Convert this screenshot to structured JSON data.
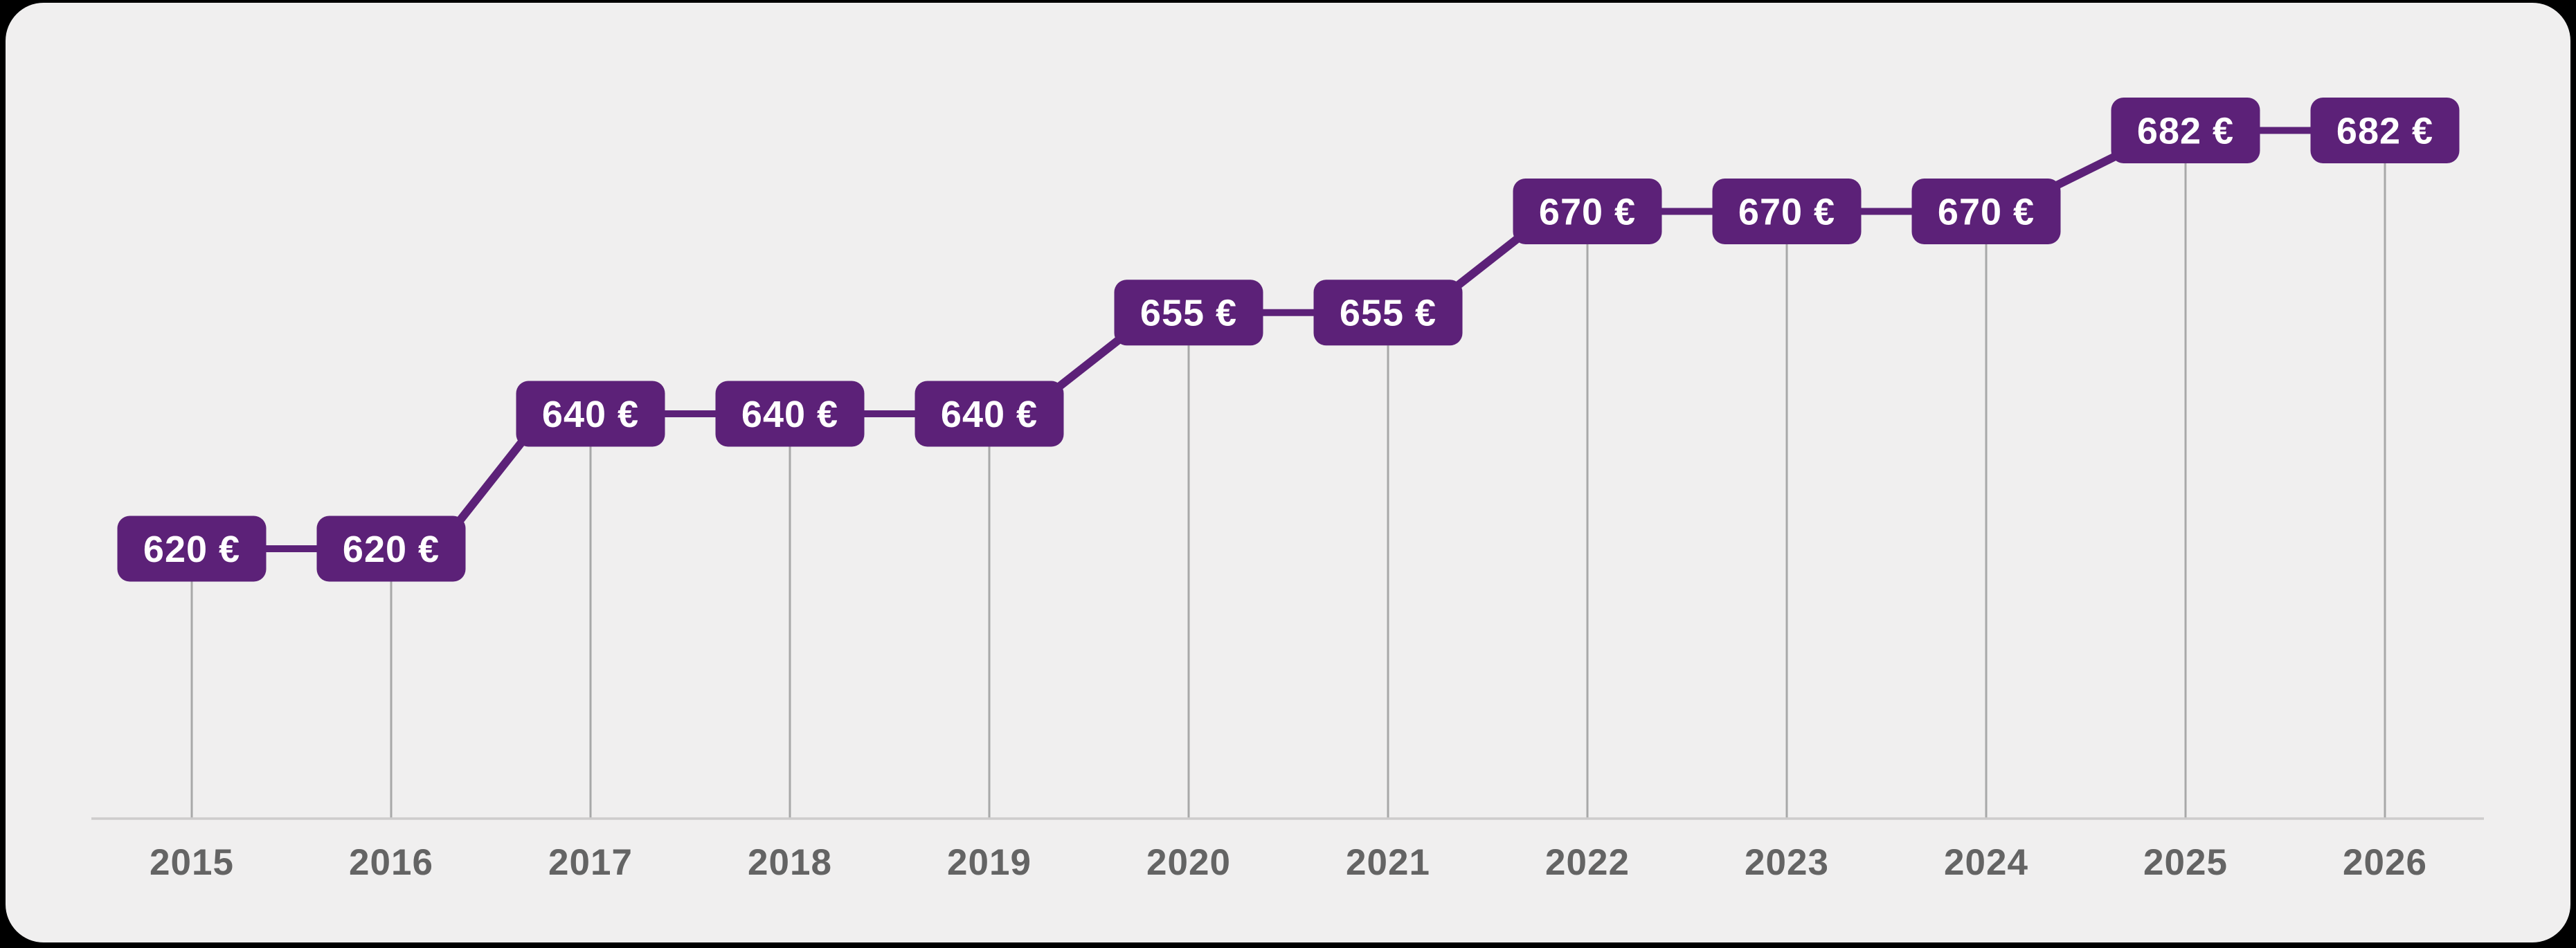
{
  "chart_data": {
    "type": "line",
    "title": "",
    "categories": [
      "2015",
      "2016",
      "2017",
      "2018",
      "2019",
      "2020",
      "2021",
      "2022",
      "2023",
      "2024",
      "2025",
      "2026"
    ],
    "series": [
      {
        "name": "amount-eur",
        "values": [
          620,
          620,
          640,
          640,
          640,
          655,
          655,
          670,
          670,
          670,
          682,
          682
        ]
      }
    ],
    "labels": [
      "620 €",
      "620 €",
      "640 €",
      "640 €",
      "640 €",
      "655 €",
      "655 €",
      "670 €",
      "670 €",
      "670 €",
      "682 €",
      "682 €"
    ],
    "unit": "€",
    "y_axis": "none",
    "x_axis": "years",
    "grid": "vertical-droplines-only",
    "legend": "none",
    "colors": {
      "badge": "#5C2178",
      "badge_text": "#FFFFFF",
      "connector": "#5C2178",
      "gridline": "#A8A8A8",
      "axis": "#CDCCCC",
      "year_label": "#646464",
      "card_background": "#F0EFEF",
      "page_background": "#000000"
    }
  }
}
